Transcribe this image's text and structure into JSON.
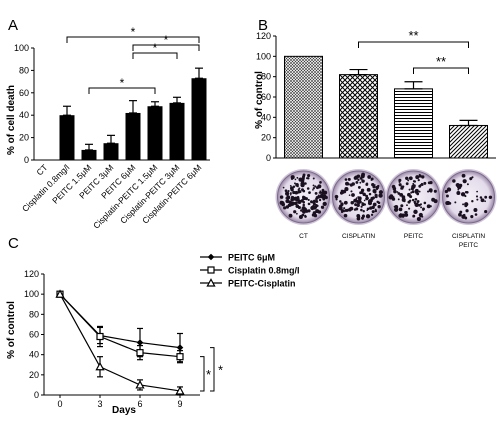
{
  "panels": {
    "A": {
      "label": "A",
      "chart_data": {
        "type": "bar",
        "ylabel": "% of cell death",
        "ylim": [
          0,
          100
        ],
        "yticks": [
          0,
          20,
          40,
          60,
          80,
          100
        ],
        "categories": [
          "CT",
          "Cisplatin 0.8mg/l",
          "PEITC 1.5μM",
          "PEITC 3μM",
          "PEITC 6μM",
          "Cisplatin-PEITC 1.5μM",
          "Cisplatin-PEITC 3μM",
          "Cisplatin-PEITC 6μM"
        ],
        "values": [
          0,
          40,
          9,
          15,
          42,
          48,
          51,
          73
        ],
        "errors": [
          0,
          8,
          5,
          7,
          11,
          4,
          5,
          9
        ],
        "color": "#000000",
        "significance": [
          {
            "from": 1,
            "to": 7,
            "label": "*"
          },
          {
            "from": 4,
            "to": 7,
            "label": "*"
          },
          {
            "from": 4,
            "to": 6,
            "label": "*"
          },
          {
            "from": 2,
            "to": 5,
            "label": "*"
          }
        ]
      }
    },
    "B": {
      "label": "B",
      "chart_data": {
        "type": "bar",
        "ylabel": "% of control",
        "ylim": [
          0,
          120
        ],
        "yticks": [
          0,
          20,
          40,
          60,
          80,
          100,
          120
        ],
        "categories": [
          "CT",
          "CISPLATIN",
          "PEITC",
          "CISPLATIN PEITC"
        ],
        "category_lines": [
          [
            "CT"
          ],
          [
            "CISPLATIN"
          ],
          [
            "PEITC"
          ],
          [
            "CISPLATIN",
            "PEITC"
          ]
        ],
        "values": [
          100,
          82,
          68,
          32
        ],
        "errors": [
          0,
          5,
          7,
          5
        ],
        "patterns": [
          "crosshatch-fine",
          "diamond",
          "horizontal-lines",
          "diagonal-lines"
        ],
        "significance": [
          {
            "from": 1,
            "to": 3,
            "label": "**"
          },
          {
            "from": 2,
            "to": 3,
            "label": "**"
          }
        ]
      }
    },
    "C": {
      "label": "C",
      "chart_data": {
        "type": "line",
        "xlabel": "Days",
        "ylabel": "% of control",
        "ylim": [
          0,
          120
        ],
        "yticks": [
          0,
          20,
          40,
          60,
          80,
          100,
          120
        ],
        "x": [
          0,
          3,
          6,
          9
        ],
        "series": [
          {
            "name": "PEITC 6μM",
            "marker": "diamond",
            "values": [
              100,
              59,
              52,
              47
            ],
            "errors": [
              0,
              8,
              14,
              14
            ]
          },
          {
            "name": "Cisplatin 0.8mg/l",
            "marker": "square",
            "values": [
              100,
              58,
              42,
              38
            ],
            "errors": [
              0,
              10,
              7,
              6
            ]
          },
          {
            "name": "PEITC-Cisplatin",
            "marker": "triangle",
            "values": [
              100,
              28,
              10,
              4
            ],
            "errors": [
              0,
              10,
              5,
              4
            ]
          }
        ],
        "significance": [
          {
            "label": "*",
            "between": [
              "PEITC 6μM",
              "PEITC-Cisplatin"
            ]
          },
          {
            "label": "*",
            "between": [
              "Cisplatin 0.8mg/l",
              "PEITC-Cisplatin"
            ]
          }
        ]
      }
    }
  }
}
